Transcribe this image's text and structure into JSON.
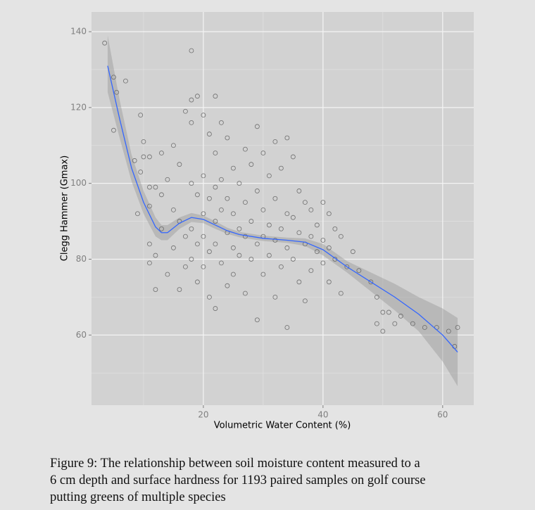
{
  "chart_data": {
    "type": "scatter",
    "x_label": "Volumetric Water Content (%)",
    "y_label": "Clegg Hammer (Gmax)",
    "caption_lines": [
      "Figure 9:  The relationship between soil moisture content measured to a",
      "6 cm depth and surface hardness for 1193 paired samples on golf course",
      "putting greens of multiple species"
    ],
    "xlim": [
      1.3,
      65.2
    ],
    "ylim": [
      41.5,
      145.2
    ],
    "xticks": [
      20,
      40,
      60
    ],
    "yticks": [
      60,
      80,
      100,
      120,
      140
    ],
    "xminor": [
      10,
      30,
      50
    ],
    "yminor": [
      50,
      70,
      90,
      110,
      130
    ],
    "grid": true,
    "point_color": "#555555",
    "x": [
      3.5,
      5,
      5.5,
      5,
      7,
      9.5,
      8.5,
      10,
      10,
      9.5,
      9,
      11,
      11,
      11,
      11,
      11,
      12,
      12,
      12,
      13,
      13,
      13,
      14,
      14,
      15,
      15,
      15,
      16,
      16,
      16,
      17,
      17,
      17,
      18,
      18,
      18,
      18,
      18,
      18,
      19,
      19,
      19,
      19,
      20,
      20,
      20,
      20,
      20,
      21,
      21,
      21,
      21,
      22,
      22,
      22,
      22,
      22,
      22,
      23,
      23,
      23,
      23,
      24,
      24,
      24,
      24,
      25,
      25,
      25,
      25,
      26,
      26,
      26,
      27,
      27,
      27,
      27,
      28,
      28,
      28,
      29,
      29,
      29,
      29,
      30,
      30,
      30,
      30,
      31,
      31,
      31,
      32,
      32,
      32,
      32,
      33,
      33,
      33,
      34,
      34,
      34,
      34,
      35,
      35,
      35,
      36,
      36,
      36,
      37,
      37,
      37,
      38,
      38,
      38,
      39,
      39,
      40,
      40,
      40,
      41,
      41,
      41,
      42,
      42,
      43,
      43,
      44,
      45,
      46,
      48,
      49,
      50,
      49,
      50,
      51,
      52,
      53,
      55,
      57,
      59,
      61,
      62,
      62.5
    ],
    "values": [
      137,
      128,
      124,
      114,
      127,
      118,
      106,
      111,
      107,
      103,
      92,
      107,
      99,
      94,
      84,
      79,
      72,
      81,
      99,
      108,
      97,
      88,
      76,
      101,
      110,
      93,
      83,
      105,
      90,
      72,
      119,
      86,
      78,
      135,
      122,
      116,
      100,
      88,
      80,
      123,
      97,
      84,
      74,
      118,
      102,
      92,
      86,
      78,
      113,
      96,
      82,
      70,
      123,
      108,
      99,
      90,
      84,
      67,
      116,
      101,
      93,
      79,
      112,
      96,
      87,
      73,
      104,
      92,
      83,
      76,
      100,
      88,
      81,
      109,
      95,
      86,
      71,
      105,
      90,
      80,
      115,
      98,
      84,
      64,
      108,
      93,
      86,
      76,
      102,
      89,
      81,
      111,
      96,
      85,
      70,
      104,
      88,
      78,
      112,
      92,
      83,
      62,
      107,
      91,
      80,
      98,
      87,
      74,
      95,
      84,
      69,
      93,
      86,
      77,
      89,
      82,
      95,
      85,
      79,
      92,
      83,
      74,
      88,
      80,
      86,
      71,
      78,
      82,
      77,
      74,
      70,
      66,
      63,
      61,
      66,
      63,
      65,
      63,
      62,
      62,
      61,
      57,
      62
    ],
    "smooth": {
      "color": "#3366ff",
      "band_color": "#999999",
      "x": [
        4,
        6,
        8,
        10,
        12,
        13,
        14,
        16,
        18,
        20,
        22,
        24,
        26,
        30,
        34,
        37,
        40,
        44,
        48,
        52,
        56,
        60,
        62.5
      ],
      "values": [
        131,
        117,
        104,
        95,
        88.5,
        87,
        87,
        89.5,
        91,
        90.5,
        89,
        87.5,
        86.5,
        85.5,
        85,
        84.5,
        82.5,
        78,
        74,
        70,
        65.5,
        60,
        55.5
      ],
      "lower": [
        124,
        112,
        100.5,
        92,
        86,
        85,
        85,
        88,
        89.8,
        89.5,
        88,
        86.7,
        85.8,
        84.8,
        84.3,
        83.5,
        81,
        76.5,
        71.5,
        66.5,
        61,
        53,
        46.5
      ],
      "upper": [
        139,
        122,
        107.5,
        98,
        91,
        89,
        89,
        91,
        92.2,
        91.5,
        90,
        88.3,
        87.2,
        86.2,
        85.7,
        85.5,
        84,
        79.5,
        76.5,
        73.5,
        70,
        67,
        64.5
      ]
    }
  }
}
